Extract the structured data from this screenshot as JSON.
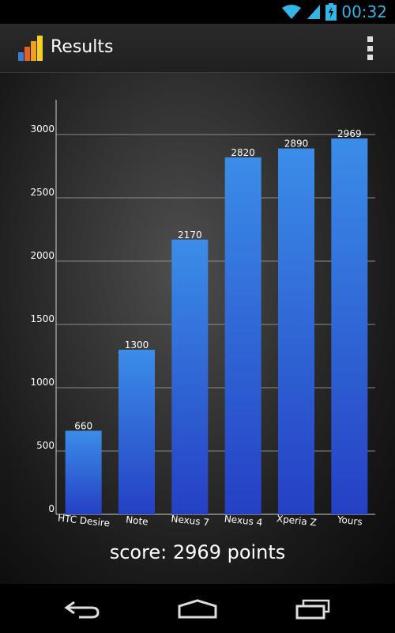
{
  "status_bar": {
    "time": "00:32",
    "icons": [
      "wifi-icon",
      "signal-icon",
      "battery-charging-icon"
    ],
    "accent_color": "#33b5e5"
  },
  "action_bar": {
    "title": "Results",
    "logo_icon": "bar-chart-logo-icon",
    "menu_icon": "overflow-menu-icon"
  },
  "chart_data": {
    "type": "bar",
    "categories": [
      "HTC Desire",
      "Note",
      "Nexus 7",
      "Nexus 4",
      "Xperia Z",
      "Yours"
    ],
    "values": [
      660,
      1300,
      2170,
      2820,
      2890,
      2969
    ],
    "value_labels": [
      "660",
      "1300",
      "2170",
      "2820",
      "2890",
      "2969"
    ],
    "y_ticks": [
      0,
      500,
      1000,
      1500,
      2000,
      2500,
      3000
    ],
    "ylim": [
      0,
      3000
    ],
    "grid": true,
    "bar_color_top": "#3b8de8",
    "bar_color_bottom": "#2540c4",
    "title": "",
    "xlabel": "",
    "ylabel": ""
  },
  "score": {
    "text": "score: 2969 points"
  },
  "nav_bar": {
    "buttons": [
      "back-icon",
      "home-icon",
      "recent-apps-icon"
    ]
  }
}
